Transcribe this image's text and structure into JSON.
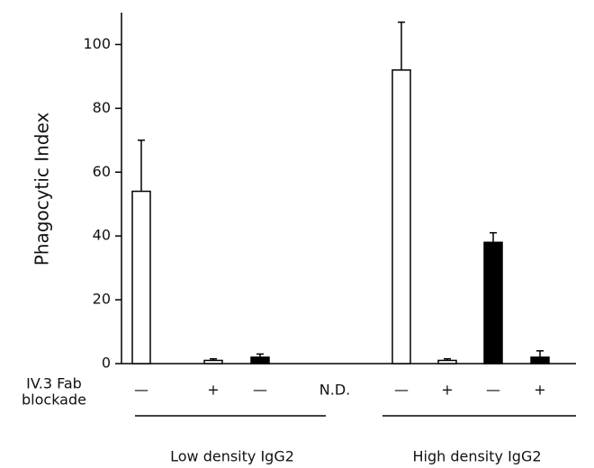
{
  "chart_data": {
    "type": "bar",
    "y_label": "Phagocytic Index",
    "row_label": [
      "IV.3 Fab",
      "blockade"
    ],
    "categories": [
      "—",
      "+",
      "—",
      "N.D.",
      "—",
      "+",
      "—",
      "+"
    ],
    "values": [
      54,
      1,
      2,
      null,
      92,
      1,
      38,
      2
    ],
    "errors": [
      16,
      0.5,
      1,
      null,
      15,
      0.5,
      3,
      2
    ],
    "colors": [
      "#ffffff",
      "#ffffff",
      "#000000",
      null,
      "#ffffff",
      "#ffffff",
      "#000000",
      "#000000"
    ],
    "groups": [
      "Low density IgG2",
      "High density IgG2"
    ],
    "ylim": [
      0,
      110
    ],
    "yticks": [
      0,
      20,
      40,
      60,
      80,
      100
    ]
  }
}
